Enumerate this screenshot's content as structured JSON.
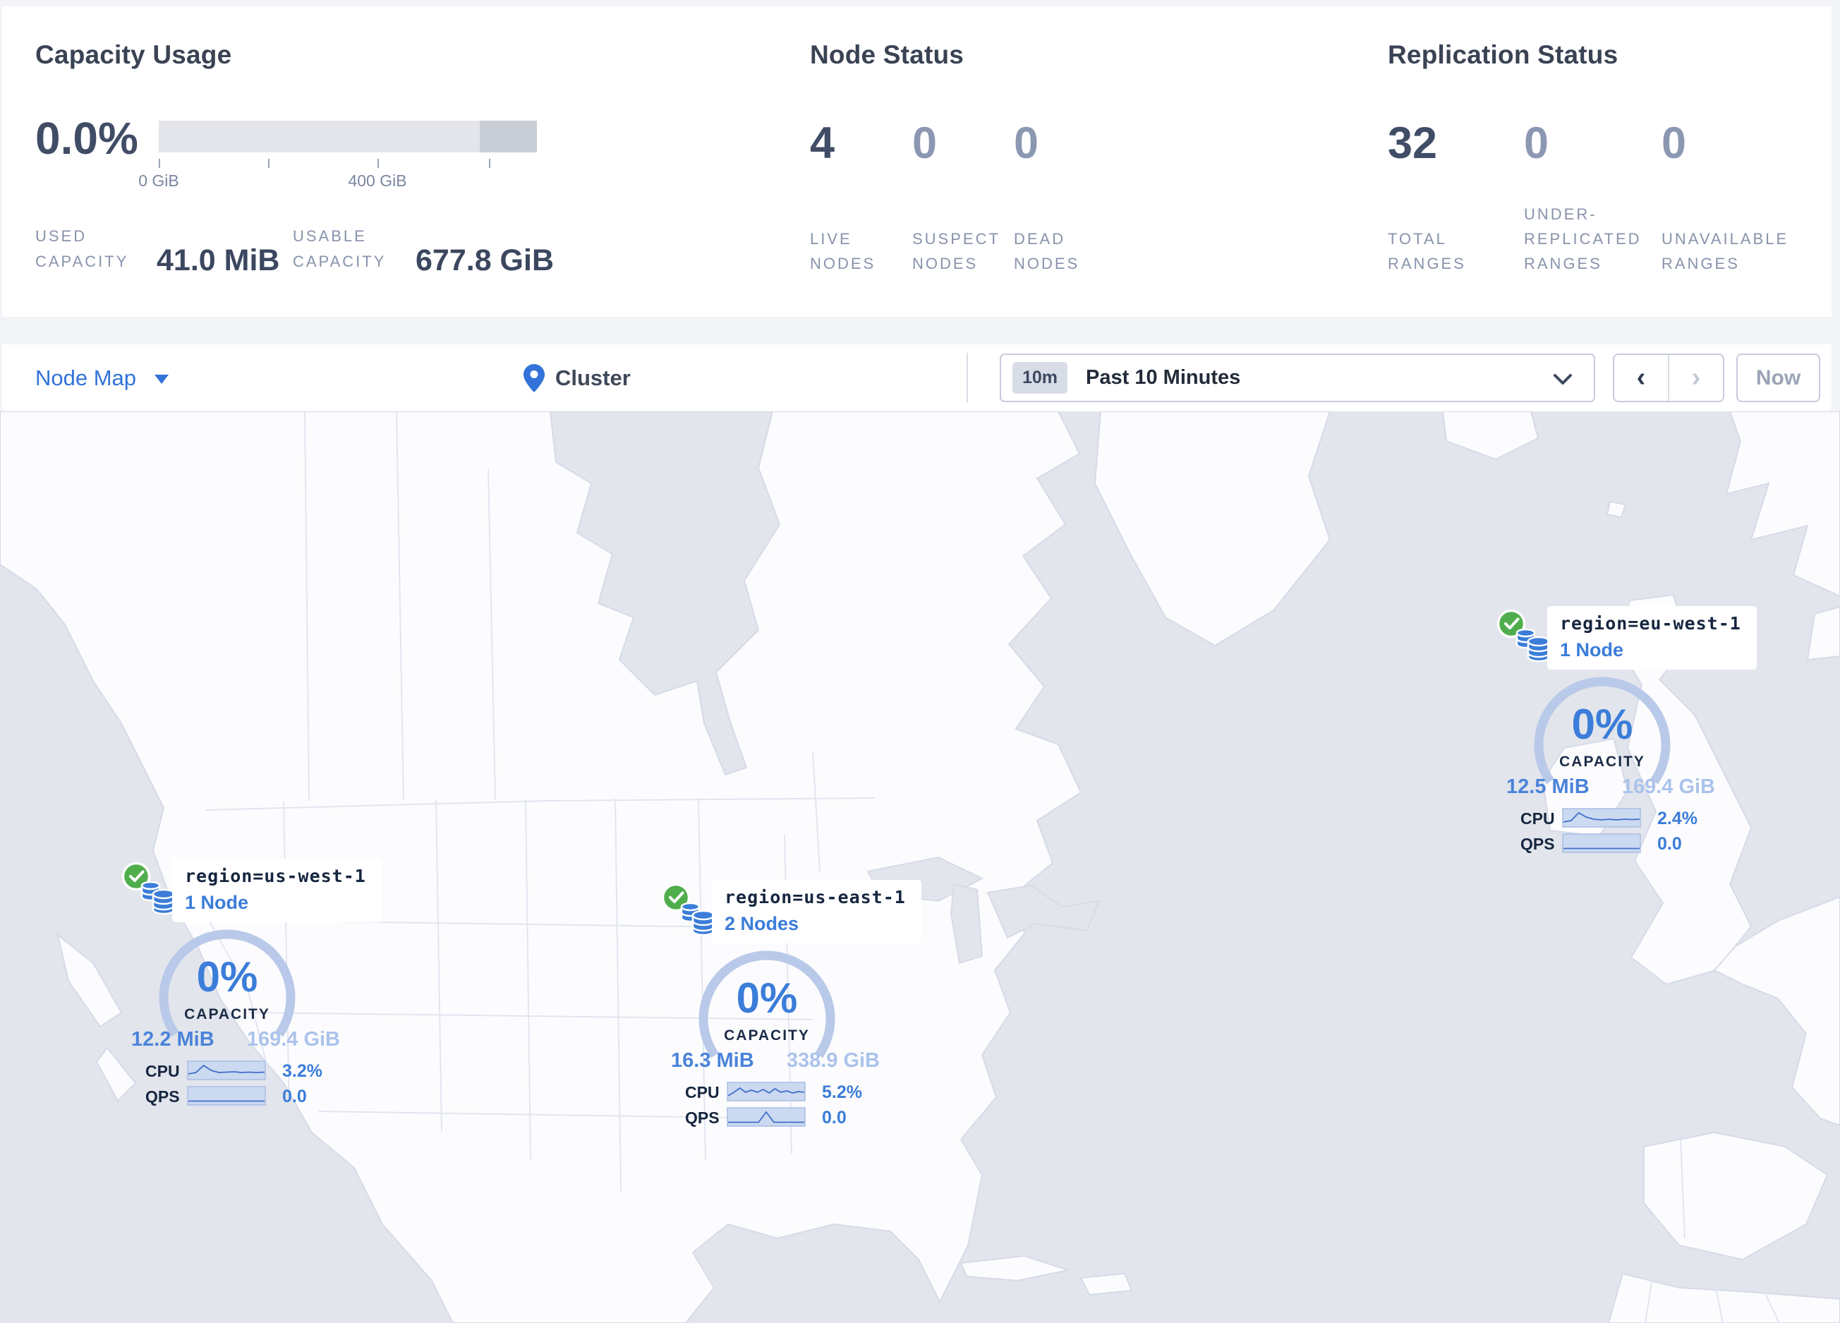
{
  "colors": {
    "accent_blue": "#3272d9",
    "healthy_green": "#4fae4b",
    "gauge_arc": "#b9c9e9",
    "water": "#e2e5ec",
    "land": "#fcfcfe"
  },
  "stats_panel": {
    "capacity": {
      "title": "Capacity Usage",
      "percent": "0.0%",
      "tick_label_zero": "0 GiB",
      "tick_label_mid": "400 GiB",
      "used_label": "USED CAPACITY",
      "used_value": "41.0 MiB",
      "usable_label": "USABLE CAPACITY",
      "usable_value": "677.8 GiB"
    },
    "node_status": {
      "title": "Node Status",
      "live": {
        "value": "4",
        "label": "LIVE NODES"
      },
      "suspect": {
        "value": "0",
        "label": "SUSPECT NODES"
      },
      "dead": {
        "value": "0",
        "label": "DEAD NODES"
      }
    },
    "replication": {
      "title": "Replication Status",
      "total": {
        "value": "32",
        "label": "TOTAL RANGES"
      },
      "under": {
        "value": "0",
        "label": "UNDER-REPLICATED RANGES"
      },
      "unavailable": {
        "value": "0",
        "label": "UNAVAILABLE RANGES"
      }
    }
  },
  "toolbar": {
    "view_label": "Node Map",
    "breadcrumb": "Cluster",
    "time_badge": "10m",
    "time_label": "Past 10 Minutes",
    "prev_label": "‹",
    "next_label": "›",
    "now_label": "Now"
  },
  "map": {
    "regions": [
      {
        "name": "region=us-west-1",
        "nodes_label": "1 Node",
        "capacity_percent": "0%",
        "capacity_label": "CAPACITY",
        "used": "12.2 MiB",
        "usable": "169.4 GiB",
        "cpu_label": "CPU",
        "cpu_value": "3.2%",
        "qps_label": "QPS",
        "qps_value": "0.0",
        "cpu_spark": [
          19,
          17,
          7,
          14,
          17,
          16.5,
          16,
          17,
          16.5,
          17,
          16.5
        ],
        "qps_spark": [
          21.5,
          21.5,
          21.5,
          21.5,
          21.5,
          21.5,
          21.5,
          21.5,
          21.5,
          21.5,
          21.5
        ]
      },
      {
        "name": "region=us-east-1",
        "nodes_label": "2 Nodes",
        "capacity_percent": "0%",
        "capacity_label": "CAPACITY",
        "used": "16.3 MiB",
        "usable": "338.9 GiB",
        "cpu_label": "CPU",
        "cpu_value": "5.2%",
        "qps_label": "QPS",
        "qps_value": "0.0",
        "cpu_spark": [
          20,
          15,
          9,
          15,
          12,
          15,
          11,
          16,
          10,
          15,
          13,
          16,
          14,
          15
        ],
        "qps_spark": [
          21.5,
          21.5,
          21.5,
          21.5,
          21.5,
          7,
          21.5,
          21.5,
          21.5,
          21.5,
          21.5
        ]
      },
      {
        "name": "region=eu-west-1",
        "nodes_label": "1 Node",
        "capacity_percent": "0%",
        "capacity_label": "CAPACITY",
        "used": "12.5 MiB",
        "usable": "169.4 GiB",
        "cpu_label": "CPU",
        "cpu_value": "2.4%",
        "qps_label": "QPS",
        "qps_value": "0.0",
        "cpu_spark": [
          20,
          18,
          7,
          13,
          16,
          17,
          16,
          17,
          16,
          16.5,
          16
        ],
        "qps_spark": [
          21.5,
          21.5,
          21.5,
          21.5,
          21.5,
          21.5,
          21.5,
          21.5,
          21.5,
          21.5,
          21.5
        ]
      }
    ]
  }
}
